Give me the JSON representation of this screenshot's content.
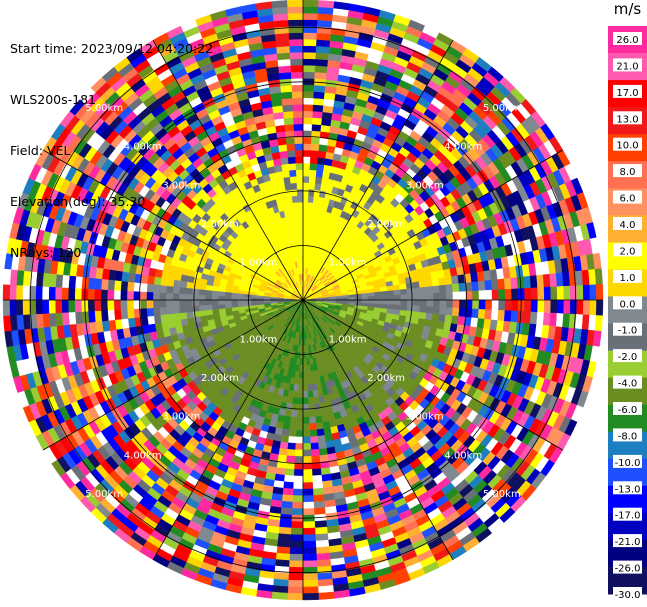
{
  "header": {
    "start_time": "Start time: 2023/09/12 04:20:22",
    "instrument": "WLS200s-181",
    "field": "Field: VEL",
    "elevation": "Elevation(deg): 35.30",
    "nrays": "NRays: 120"
  },
  "chart_data": {
    "type": "heatmap",
    "projection": "polar (PPI)",
    "field": "VEL",
    "units": "m/s",
    "n_rays": 120,
    "range_rings_km": [
      "1.00km",
      "2.00km",
      "3.00km",
      "4.00km",
      "5.00km"
    ],
    "color_scale": {
      "unit_label": "m/s",
      "ticks": [
        "26.0",
        "21.0",
        "17.0",
        "13.0",
        "10.0",
        "8.0",
        "6.0",
        "4.0",
        "2.0",
        "1.0",
        "0.0",
        "-1.0",
        "-2.0",
        "-4.0",
        "-6.0",
        "-8.0",
        "-10.0",
        "-13.0",
        "-17.0",
        "-21.0",
        "-26.0",
        "-30.0"
      ],
      "colors": [
        "#ff2aa0",
        "#ff59b0",
        "#ff0000",
        "#f01818",
        "#ff4000",
        "#ff7050",
        "#ff9060",
        "#ffb030",
        "#ffff00",
        "#ffd700",
        "#808890",
        "#6a7078",
        "#9acd32",
        "#6b8e23",
        "#228b22",
        "#1e7fc0",
        "#1e50ff",
        "#0000ff",
        "#0000c0",
        "#000080",
        "#101060"
      ]
    },
    "pattern": {
      "near_field_range_km": 2.6,
      "north_sector": "positive (yellow)",
      "south_sector": "negative (green)",
      "outer_region": "noise"
    }
  }
}
